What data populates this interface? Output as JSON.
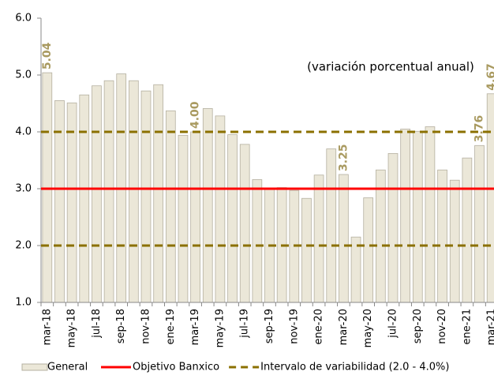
{
  "chart_data": {
    "type": "bar",
    "annotation": "(variación porcentual anual)",
    "categories": [
      "mar-18",
      null,
      "may-18",
      null,
      "jul-18",
      null,
      "sep-18",
      null,
      "nov-18",
      null,
      "ene-19",
      null,
      "mar-19",
      null,
      "may-19",
      null,
      "jul-19",
      null,
      "sep-19",
      null,
      "nov-19",
      null,
      "ene-20",
      null,
      "mar-20",
      null,
      "may-20",
      null,
      "jul-20",
      null,
      "sep-20",
      null,
      "nov-20",
      null,
      "ene-21",
      null,
      "mar-21"
    ],
    "series": [
      {
        "name": "General",
        "color": "#ebe7d8",
        "values": [
          5.04,
          4.55,
          4.51,
          4.65,
          4.81,
          4.9,
          5.02,
          4.9,
          4.72,
          4.83,
          4.37,
          3.94,
          4.0,
          4.41,
          4.28,
          3.95,
          3.78,
          3.16,
          3.0,
          3.02,
          2.97,
          2.83,
          3.24,
          3.7,
          3.25,
          2.15,
          2.84,
          3.33,
          3.62,
          4.05,
          4.01,
          4.09,
          3.33,
          3.15,
          3.54,
          3.76,
          4.67
        ],
        "value_labels": [
          "5.04",
          null,
          null,
          null,
          null,
          null,
          null,
          null,
          null,
          null,
          null,
          null,
          "4.00",
          null,
          null,
          null,
          null,
          null,
          null,
          null,
          null,
          null,
          null,
          null,
          "3.25",
          null,
          null,
          null,
          null,
          null,
          null,
          null,
          null,
          null,
          null,
          "3.76",
          "4.67"
        ]
      }
    ],
    "reference_lines": [
      {
        "name": "Objetivo Banxico",
        "color": "#ff0000",
        "values": [
          3
        ],
        "dash": false
      },
      {
        "name": "Intervalo de variabilidad (2.0 - 4.0%)",
        "color": "#8b7000",
        "values": [
          2,
          4
        ],
        "dash": true
      }
    ],
    "ylim": [
      1,
      6
    ],
    "yticks": [
      {
        "value": 1,
        "label": "1.0"
      },
      {
        "value": 2,
        "label": "2.0"
      },
      {
        "value": 3,
        "label": "3.0"
      },
      {
        "value": 4,
        "label": "4.0"
      },
      {
        "value": 5,
        "label": "5.0"
      },
      {
        "value": 6,
        "label": "6.0"
      }
    ],
    "label_color": "#a99a60"
  }
}
